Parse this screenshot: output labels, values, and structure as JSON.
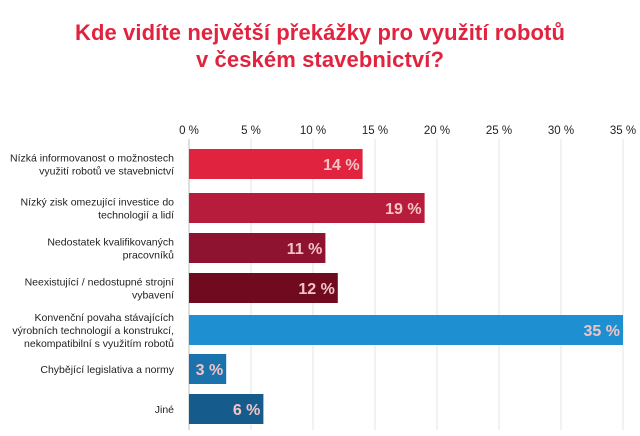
{
  "chart_data": {
    "type": "bar",
    "orientation": "horizontal",
    "title_lines": [
      "Kde vidíte největší překážky pro využití robotů",
      "v českém stavebnictví?"
    ],
    "xlim": [
      0,
      35
    ],
    "xticks": [
      0,
      5,
      10,
      15,
      20,
      25,
      30,
      35
    ],
    "xtick_labels": [
      "0 %",
      "5 %",
      "10 %",
      "15 %",
      "20 %",
      "25 %",
      "30 %",
      "35 %"
    ],
    "categories": [
      [
        "Nízká informovanost o možnostech",
        "využití robotů ve stavebnictví"
      ],
      [
        "Nízký zisk omezující investice do",
        "technologií a lidí"
      ],
      [
        "Nedostatek kvalifikovaných",
        "pracovníků"
      ],
      [
        "Neexistující / nedostupné strojní",
        "vybavení"
      ],
      [
        "Konvenční povaha stávajících",
        "výrobních technologií a konstrukcí,",
        "nekompatibilní s využitím robotů"
      ],
      [
        "Chybějící legislativa a normy"
      ],
      [
        "Jiné"
      ]
    ],
    "values": [
      14,
      19,
      11,
      12,
      35,
      3,
      6
    ],
    "value_labels": [
      "14 %",
      "19 %",
      "11 %",
      "12 %",
      "35 %",
      "3 %",
      "6 %"
    ],
    "colors": [
      "#e0243f",
      "#b81c3c",
      "#8e1330",
      "#6f0a1f",
      "#1e8fd0",
      "#1a73ad",
      "#155c8c"
    ],
    "grid": "vertical",
    "legend": "none"
  }
}
